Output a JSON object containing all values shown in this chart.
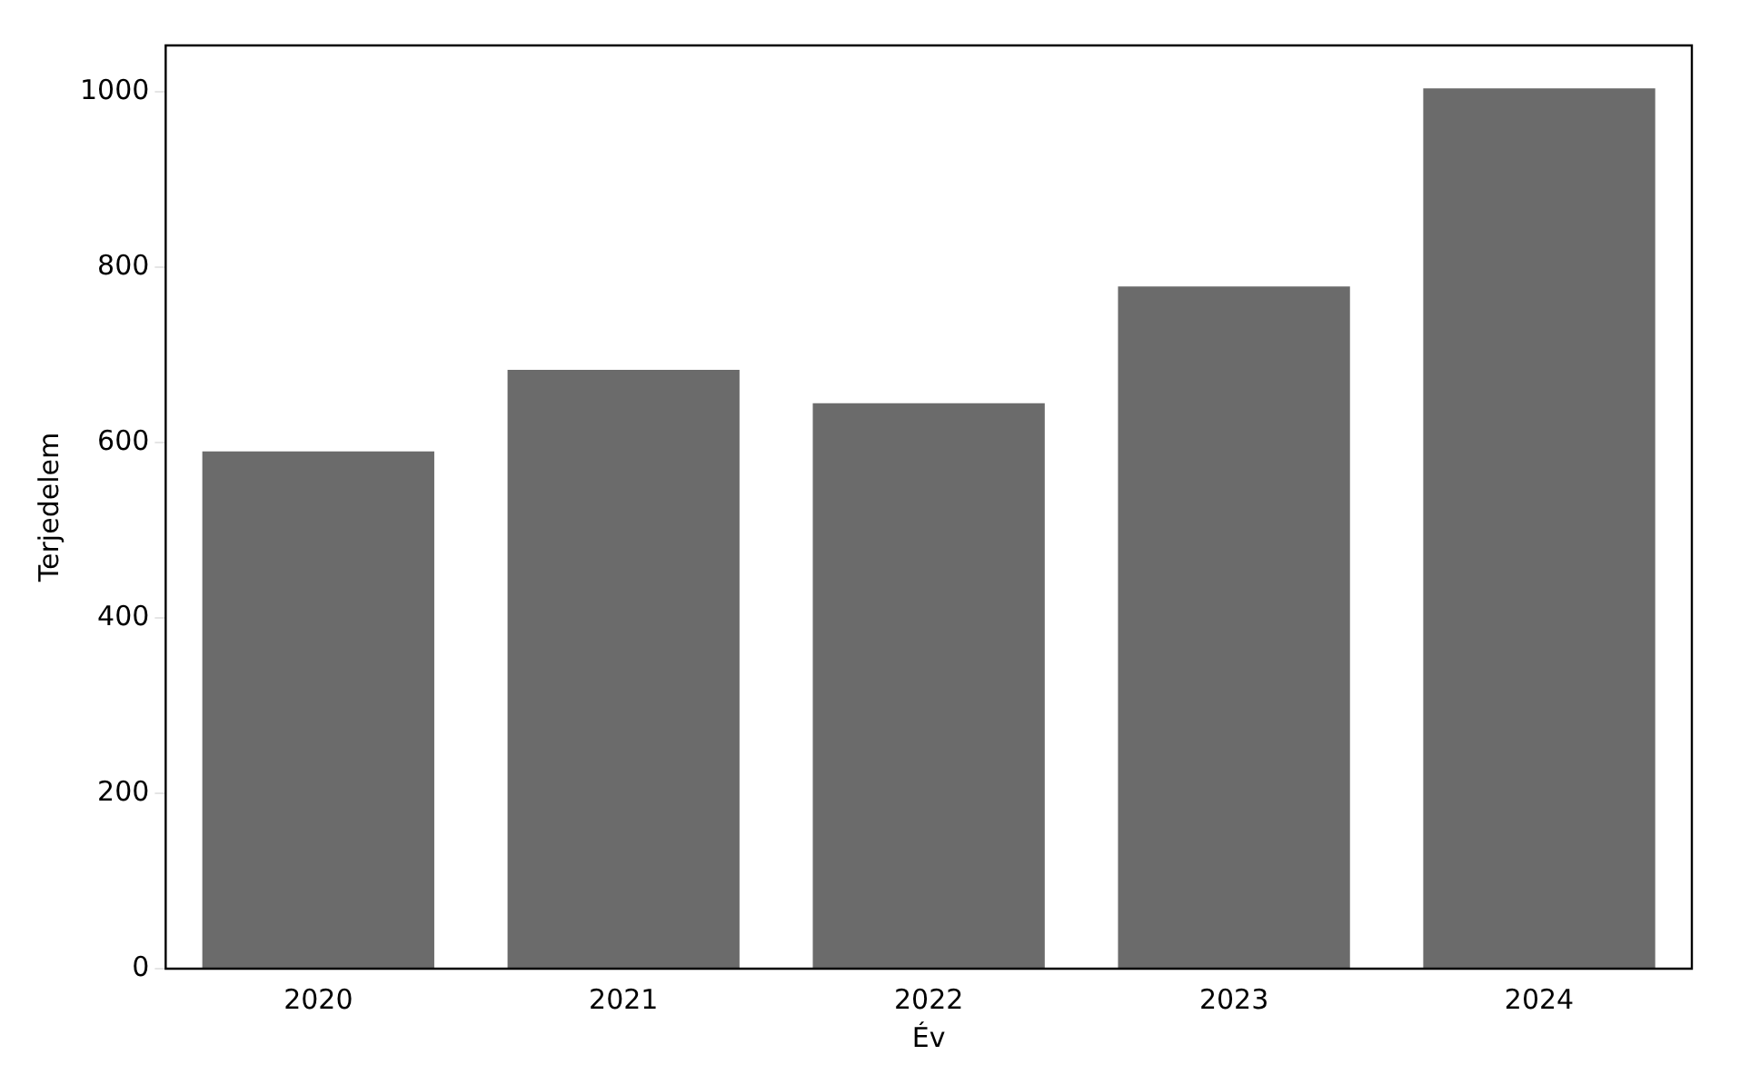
{
  "chart_data": {
    "type": "bar",
    "xlabel": "Év",
    "ylabel": "Terjedelem",
    "categories": [
      "2020",
      "2021",
      "2022",
      "2023",
      "2024"
    ],
    "values": [
      590,
      683,
      645,
      778,
      1004
    ],
    "color": "#6b6b6b",
    "ylim": [
      0,
      1053
    ],
    "yticks": [
      0,
      200,
      400,
      600,
      800,
      1000
    ],
    "grid": false,
    "legend": false
  }
}
